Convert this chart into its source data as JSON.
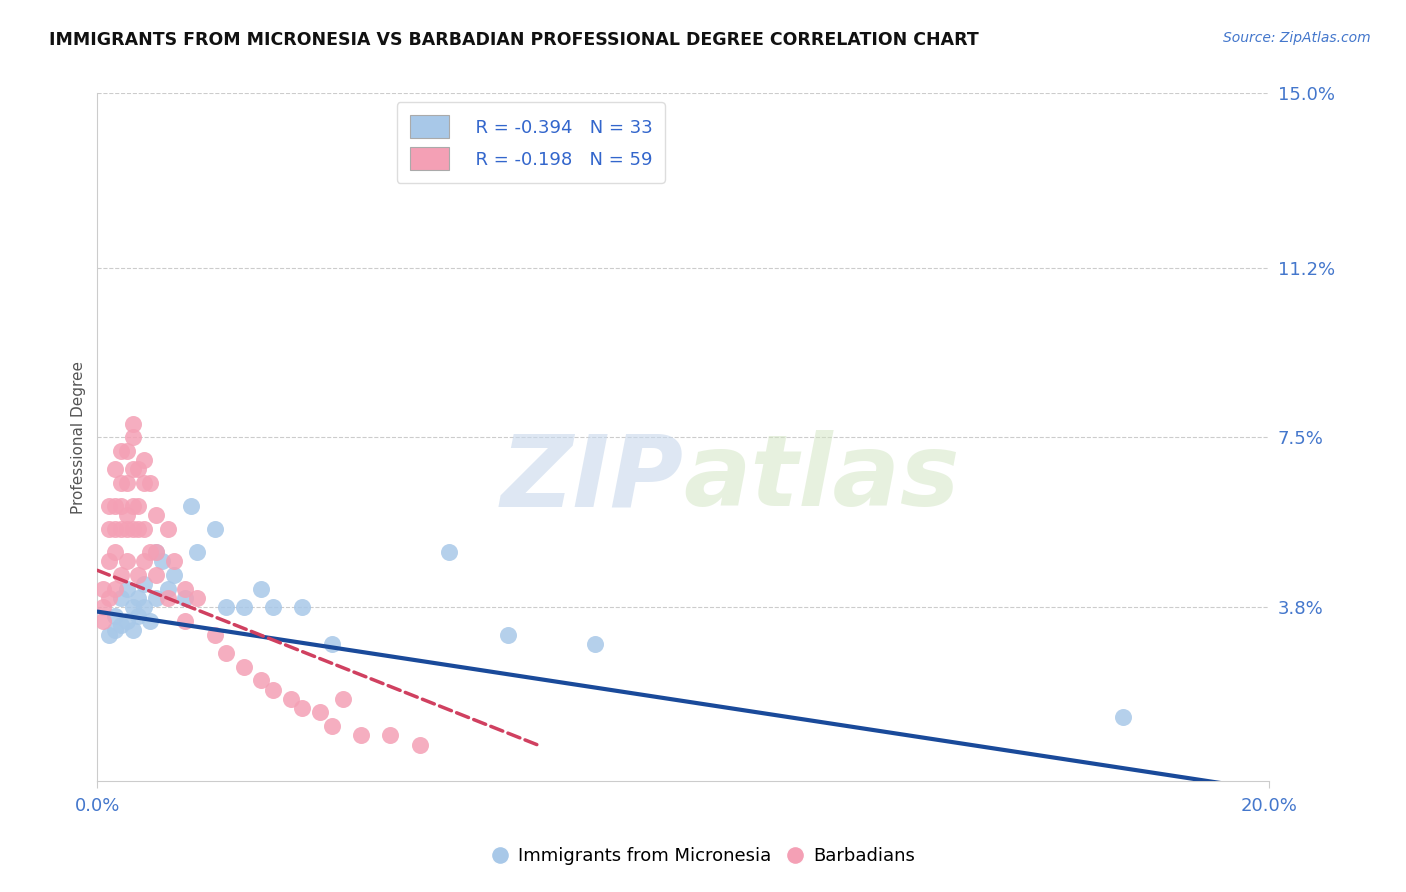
{
  "title": "IMMIGRANTS FROM MICRONESIA VS BARBADIAN PROFESSIONAL DEGREE CORRELATION CHART",
  "source_text": "Source: ZipAtlas.com",
  "ylabel": "Professional Degree",
  "xlim": [
    0.0,
    0.2
  ],
  "ylim": [
    0.0,
    0.15
  ],
  "ytick_labels": [
    "3.8%",
    "7.5%",
    "11.2%",
    "15.0%"
  ],
  "ytick_values": [
    0.038,
    0.075,
    0.112,
    0.15
  ],
  "hgrid_values": [
    0.038,
    0.075,
    0.112,
    0.15
  ],
  "legend_r_blue": "R = -0.394",
  "legend_n_blue": "N = 33",
  "legend_r_pink": "R = -0.198",
  "legend_n_pink": "N = 59",
  "blue_color": "#a8c8e8",
  "pink_color": "#f4a0b5",
  "blue_line_color": "#1a4a9a",
  "pink_line_color": "#d04060",
  "watermark_zip": "ZIP",
  "watermark_atlas": "atlas",
  "blue_trend_x": [
    0.0,
    0.2
  ],
  "blue_trend_y": [
    0.037,
    -0.002
  ],
  "pink_trend_x": [
    0.0,
    0.075
  ],
  "pink_trend_y": [
    0.046,
    0.008
  ],
  "blue_points_x": [
    0.002,
    0.003,
    0.003,
    0.004,
    0.004,
    0.005,
    0.005,
    0.006,
    0.006,
    0.007,
    0.007,
    0.008,
    0.008,
    0.009,
    0.01,
    0.01,
    0.011,
    0.012,
    0.013,
    0.015,
    0.016,
    0.017,
    0.02,
    0.022,
    0.025,
    0.028,
    0.03,
    0.035,
    0.04,
    0.06,
    0.07,
    0.085,
    0.175
  ],
  "blue_points_y": [
    0.032,
    0.033,
    0.036,
    0.034,
    0.04,
    0.035,
    0.042,
    0.038,
    0.033,
    0.04,
    0.036,
    0.038,
    0.043,
    0.035,
    0.05,
    0.04,
    0.048,
    0.042,
    0.045,
    0.04,
    0.06,
    0.05,
    0.055,
    0.038,
    0.038,
    0.042,
    0.038,
    0.038,
    0.03,
    0.05,
    0.032,
    0.03,
    0.014
  ],
  "pink_points_x": [
    0.001,
    0.001,
    0.001,
    0.002,
    0.002,
    0.002,
    0.002,
    0.003,
    0.003,
    0.003,
    0.003,
    0.003,
    0.004,
    0.004,
    0.004,
    0.004,
    0.004,
    0.005,
    0.005,
    0.005,
    0.005,
    0.005,
    0.006,
    0.006,
    0.006,
    0.006,
    0.006,
    0.007,
    0.007,
    0.007,
    0.007,
    0.008,
    0.008,
    0.008,
    0.008,
    0.009,
    0.009,
    0.01,
    0.01,
    0.01,
    0.012,
    0.012,
    0.013,
    0.015,
    0.015,
    0.017,
    0.02,
    0.022,
    0.025,
    0.028,
    0.03,
    0.033,
    0.035,
    0.038,
    0.04,
    0.042,
    0.045,
    0.05,
    0.055
  ],
  "pink_points_y": [
    0.038,
    0.042,
    0.035,
    0.04,
    0.048,
    0.055,
    0.06,
    0.042,
    0.05,
    0.055,
    0.06,
    0.068,
    0.055,
    0.06,
    0.045,
    0.072,
    0.065,
    0.048,
    0.058,
    0.065,
    0.072,
    0.055,
    0.055,
    0.068,
    0.075,
    0.06,
    0.078,
    0.06,
    0.068,
    0.045,
    0.055,
    0.07,
    0.065,
    0.055,
    0.048,
    0.065,
    0.05,
    0.058,
    0.05,
    0.045,
    0.055,
    0.04,
    0.048,
    0.042,
    0.035,
    0.04,
    0.032,
    0.028,
    0.025,
    0.022,
    0.02,
    0.018,
    0.016,
    0.015,
    0.012,
    0.018,
    0.01,
    0.01,
    0.008
  ]
}
